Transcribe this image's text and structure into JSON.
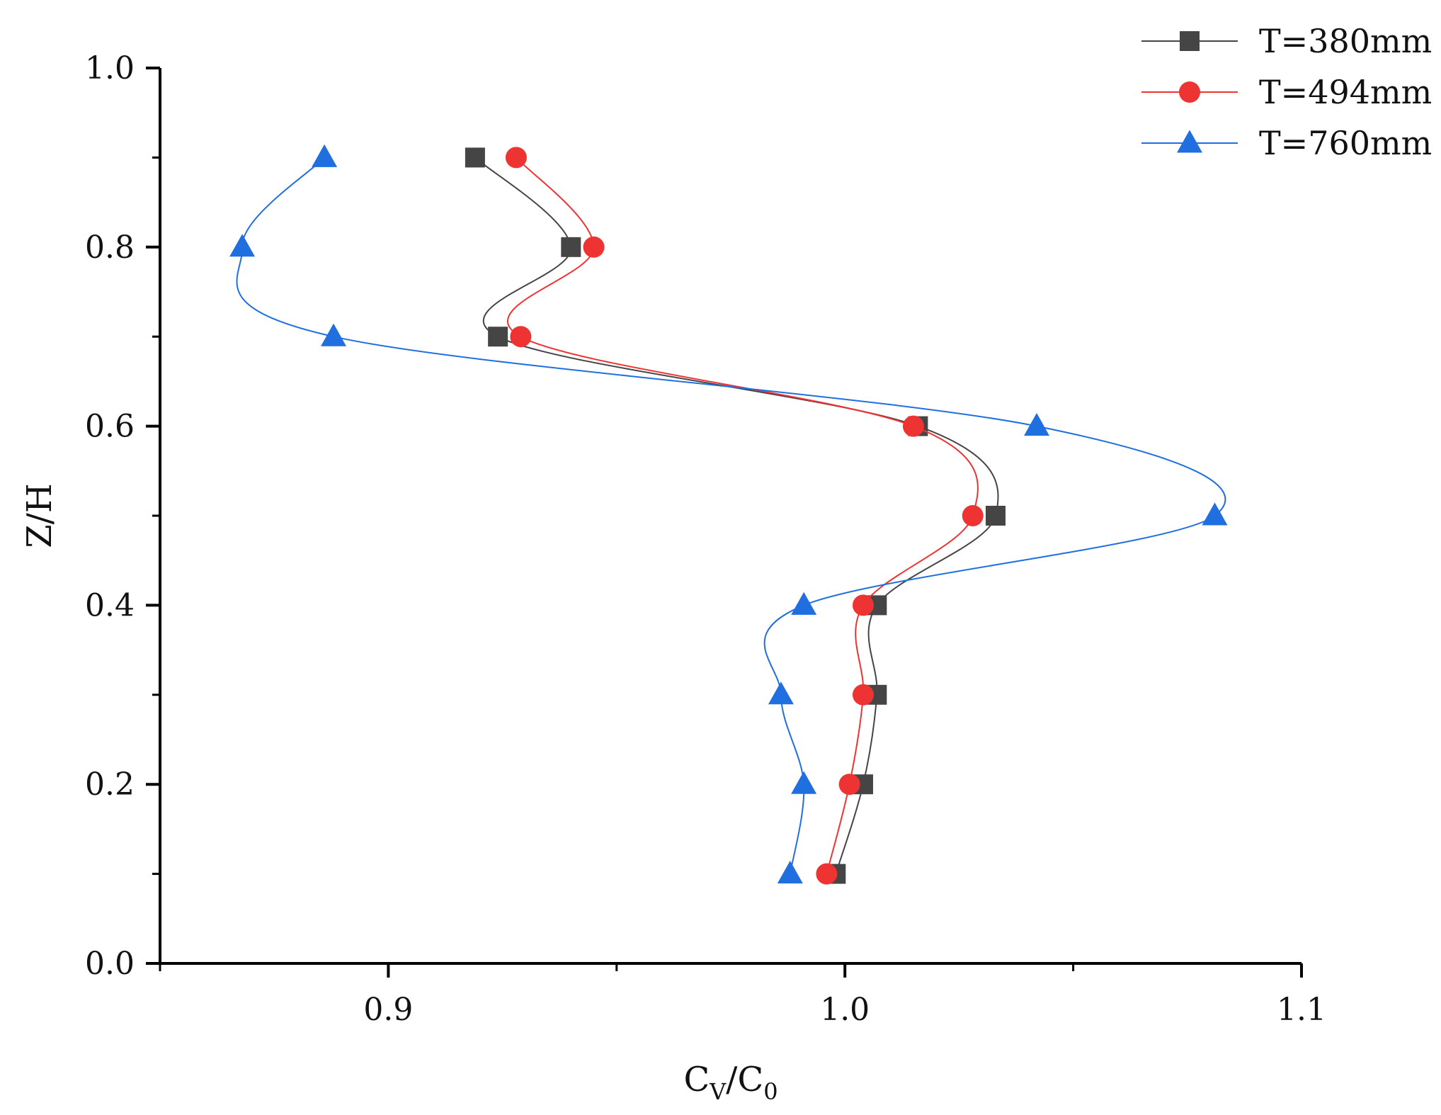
{
  "chart_data": {
    "type": "line",
    "title": "",
    "xlabel": "C_V/C_0",
    "xlabel_main": "C",
    "xlabel_sub1": "V",
    "xlabel_sep": "/C",
    "xlabel_sub2": "0",
    "ylabel": "Z/H",
    "xlim": [
      0.85,
      1.1
    ],
    "ylim": [
      0.0,
      1.0
    ],
    "x_major_ticks": [
      0.9,
      1.0,
      1.1
    ],
    "x_tick_labels": [
      "0.9",
      "1.0",
      "1.1"
    ],
    "x_minor_ticks": [
      0.85,
      0.95,
      1.05
    ],
    "y_major_ticks": [
      0.0,
      0.2,
      0.4,
      0.6,
      0.8,
      1.0
    ],
    "y_tick_labels": [
      "0.0",
      "0.2",
      "0.4",
      "0.6",
      "0.8",
      "1.0"
    ],
    "y_minor_ticks": [
      0.1,
      0.3,
      0.5,
      0.7,
      0.9
    ],
    "grid": false,
    "legend_position": "top-right",
    "series": [
      {
        "name": "T=380mm",
        "color": "#454545",
        "marker": "square",
        "y": [
          0.1,
          0.2,
          0.3,
          0.4,
          0.5,
          0.6,
          0.7,
          0.8,
          0.9
        ],
        "values": [
          0.998,
          1.004,
          1.007,
          1.007,
          1.033,
          1.016,
          0.924,
          0.94,
          0.919
        ]
      },
      {
        "name": "T=494mm",
        "color": "#ee3333",
        "marker": "circle",
        "y": [
          0.1,
          0.2,
          0.3,
          0.4,
          0.5,
          0.6,
          0.7,
          0.8,
          0.9
        ],
        "values": [
          0.996,
          1.001,
          1.004,
          1.004,
          1.028,
          1.015,
          0.929,
          0.945,
          0.928
        ]
      },
      {
        "name": "T=760mm",
        "color": "#1f6fe0",
        "marker": "triangle",
        "y": [
          0.1,
          0.2,
          0.3,
          0.4,
          0.5,
          0.6,
          0.7,
          0.8,
          0.9
        ],
        "values": [
          0.988,
          0.991,
          0.986,
          0.991,
          1.081,
          1.042,
          0.888,
          0.868,
          0.886
        ]
      }
    ]
  }
}
